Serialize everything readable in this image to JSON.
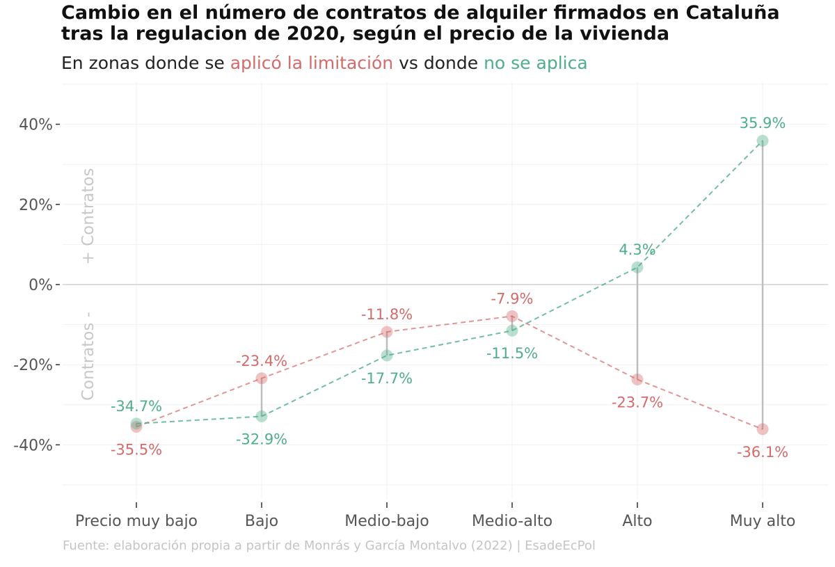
{
  "title": "Cambio en el número de contratos de alquiler firmados en Cataluña tras la regulacion de 2020, según el precio de la vivienda",
  "subtitle": {
    "prefix": "En zonas donde se ",
    "treated": "aplicó la limitación",
    "middle": " vs donde ",
    "control": "no se aplica"
  },
  "caption": "Fuente: elaboración propia a partir de Monrás y García Montalvo (2022) | EsadeEcPol",
  "colors": {
    "treated": "#d46a6a",
    "control": "#4fae8a",
    "connector": "#bdbdbd"
  },
  "chart_data": {
    "type": "scatter",
    "categories": [
      "Precio muy bajo",
      "Bajo",
      "Medio-bajo",
      "Medio-alto",
      "Alto",
      "Muy alto"
    ],
    "series": [
      {
        "key": "treated",
        "values": [
          -35.5,
          -23.4,
          -11.8,
          -7.9,
          -23.7,
          -36.1
        ],
        "labels": [
          "-35.5%",
          "-23.4%",
          "-11.8%",
          "-7.9%",
          "-23.7%",
          "-36.1%"
        ]
      },
      {
        "key": "control",
        "values": [
          -34.7,
          -32.9,
          -17.7,
          -11.5,
          4.3,
          35.9
        ],
        "labels": [
          "-34.7%",
          "-32.9%",
          "-17.7%",
          "-11.5%",
          "4.3%",
          "35.9%"
        ]
      }
    ],
    "yticks": [
      40,
      20,
      0,
      -20,
      -40
    ],
    "ytick_labels": [
      "40%",
      "20%",
      "0%",
      "-20%",
      "-40%"
    ],
    "ylim": [
      -52,
      50
    ],
    "ylabel_top": "+ Contratos",
    "ylabel_bottom": "Contratos -",
    "grid": true
  }
}
